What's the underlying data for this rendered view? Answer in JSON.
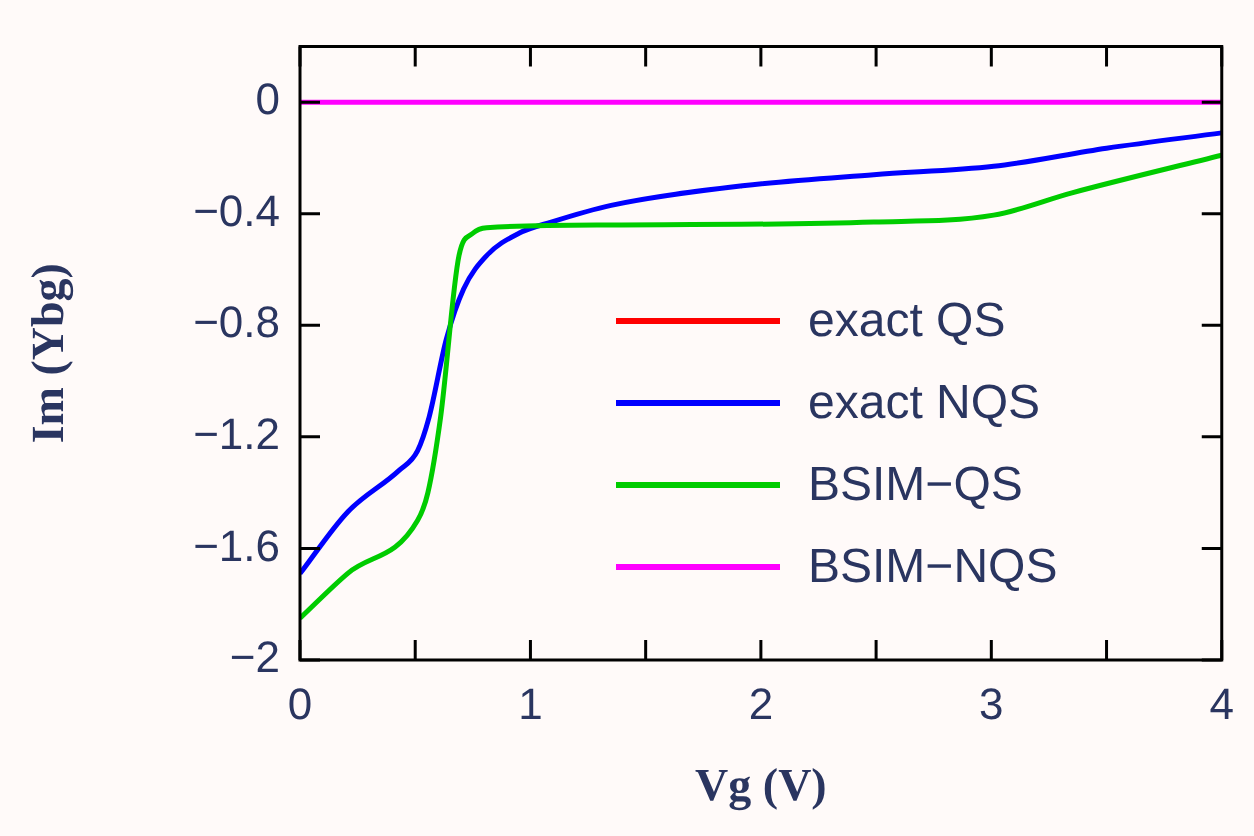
{
  "chart_data": {
    "type": "line",
    "xlabel": "Vg (V)",
    "ylabel": "Im (Ybg)",
    "xlim": [
      0,
      4
    ],
    "ylim": [
      -2,
      0.2
    ],
    "xticks": [
      0,
      {
        "value": 0.5,
        "label": null
      },
      1,
      {
        "value": 1.5,
        "label": null
      },
      2,
      {
        "value": 2.5,
        "label": null
      },
      3,
      {
        "value": 3.5,
        "label": null
      },
      4
    ],
    "yticks": [
      0,
      {
        "value": -0.4,
        "label": "−0.4"
      },
      {
        "value": -0.8,
        "label": "−0.8"
      },
      {
        "value": -1.2,
        "label": "−1.2"
      },
      {
        "value": -1.6,
        "label": "−1.6"
      },
      {
        "value": -2,
        "label": "−2"
      }
    ],
    "grid": false,
    "legend": "right",
    "marker": "none",
    "line_style": "solid",
    "series": [
      {
        "name": "exact QS",
        "color": "#ff0000"
      },
      {
        "name": "exact NQS",
        "color": "#0000ff",
        "x": [
          0,
          0.206,
          0.43,
          0.51,
          0.56,
          0.635,
          0.71,
          0.81,
          0.95,
          1.09,
          1.35,
          1.92,
          2.49,
          3.01,
          3.5,
          4
        ],
        "values": [
          -1.69,
          -1.47,
          -1.32,
          -1.25,
          -1.13,
          -0.85,
          -0.67,
          -0.55,
          -0.47,
          -0.43,
          -0.37,
          -0.3,
          -0.26,
          -0.23,
          -0.165,
          -0.11
        ]
      },
      {
        "name": "BSIM−QS",
        "color": "#00cc00",
        "x": [
          0,
          0.206,
          0.51,
          0.555,
          0.61,
          0.69,
          0.75,
          0.81,
          1.35,
          2.49,
          3.01,
          3.35,
          4
        ],
        "values": [
          -1.85,
          -1.69,
          -1.5,
          -1.4,
          -1.13,
          -0.55,
          -0.47,
          -0.45,
          -0.44,
          -0.43,
          -0.405,
          -0.325,
          -0.19
        ]
      },
      {
        "name": "BSIM−NQS",
        "color": "#ff00ff",
        "x": [
          0,
          4
        ],
        "values": [
          0,
          0
        ]
      }
    ]
  }
}
